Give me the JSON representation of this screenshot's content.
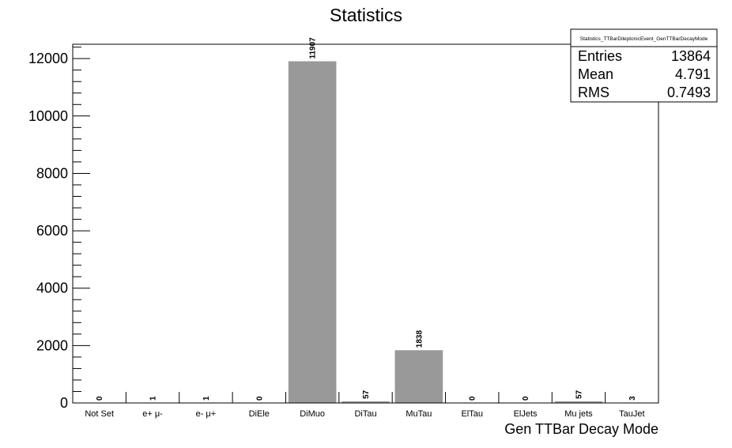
{
  "chart_data": {
    "type": "bar",
    "title": "Statistics",
    "xlabel": "Gen TTBar Decay Mode",
    "ylabel": "",
    "categories": [
      "Not Set",
      "e+ μ-",
      "e- μ+",
      "DiEle",
      "DiMuo",
      "DiTau",
      "MuTau",
      "ElTau",
      "ElJets",
      "Mu jets",
      "TauJet"
    ],
    "values": [
      0,
      1,
      1,
      0,
      11907,
      57,
      1838,
      0,
      0,
      57,
      3
    ],
    "value_labels": [
      "0",
      "1",
      "1",
      "0",
      "11907",
      "57",
      "1838",
      "0",
      "0",
      "57",
      "3"
    ],
    "ylim": [
      0,
      12500
    ],
    "yticks": [
      0,
      2000,
      4000,
      6000,
      8000,
      10000,
      12000
    ],
    "ytick_labels": [
      "0",
      "2000",
      "4000",
      "6000",
      "8000",
      "10000",
      "12000"
    ],
    "grid": false,
    "bar_color": "#999999",
    "legend": "none"
  },
  "stats_box": {
    "name": "Statistics_TTBarDileptonicEvent_GenTTBarDecayMode",
    "rows": [
      {
        "label": "Entries",
        "value": "13864"
      },
      {
        "label": "Mean",
        "value": "4.791"
      },
      {
        "label": "RMS",
        "value": "0.7493"
      }
    ]
  }
}
